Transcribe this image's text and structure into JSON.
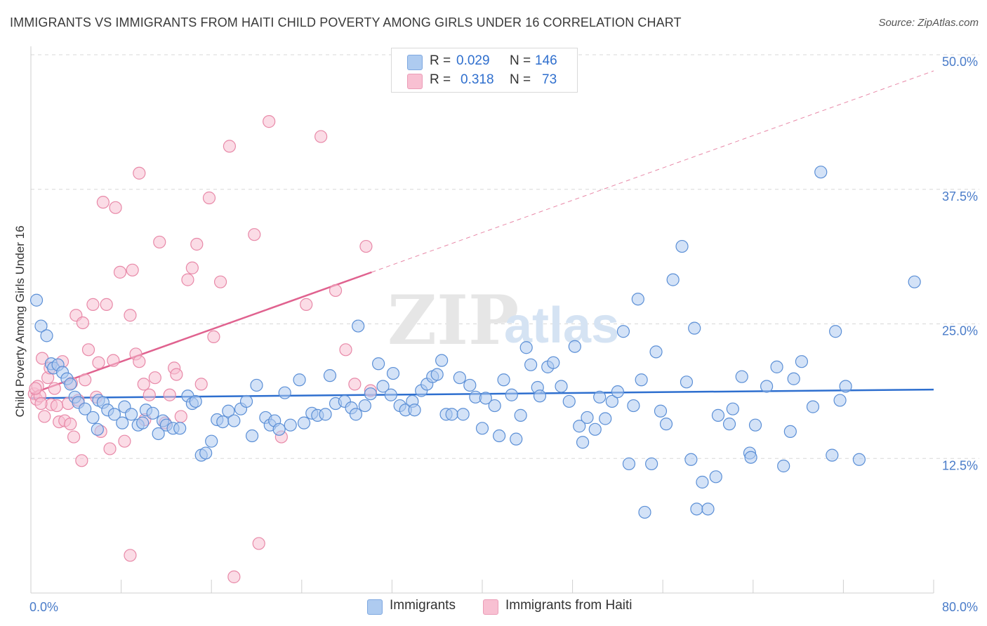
{
  "title": "IMMIGRANTS VS IMMIGRANTS FROM HAITI CHILD POVERTY AMONG GIRLS UNDER 16 CORRELATION CHART",
  "source": "Source: ZipAtlas.com",
  "watermark": {
    "zip": "ZIP",
    "atlas": "atlas"
  },
  "legend": {
    "series1": {
      "r_label": "R =",
      "r_value": "0.029",
      "n_label": "N =",
      "n_value": "146"
    },
    "series2": {
      "r_label": "R =",
      "r_value": "0.318",
      "n_label": "N =",
      "n_value": "73"
    }
  },
  "colors": {
    "blue_fill": "#aecbf0",
    "blue_stroke": "#5b8fd6",
    "blue_line": "#2e6fcf",
    "pink_fill": "#f8c0d2",
    "pink_stroke": "#e889a8",
    "pink_line": "#e0628f",
    "grid": "#d8d8d8",
    "tick_text": "#4a7cc9"
  },
  "chart_data": {
    "type": "scatter",
    "title": "IMMIGRANTS VS IMMIGRANTS FROM HAITI CHILD POVERTY AMONG GIRLS UNDER 16 CORRELATION CHART",
    "xlabel": "",
    "ylabel": "Child Poverty Among Girls Under 16",
    "xlim": [
      0,
      80
    ],
    "ylim": [
      0,
      50
    ],
    "x_tick_labels": [
      "0.0%",
      "80.0%"
    ],
    "y_ticks": [
      12.5,
      25.0,
      37.5,
      50.0
    ],
    "y_tick_labels": [
      "12.5%",
      "25.0%",
      "37.5%",
      "50.0%"
    ],
    "grid": true,
    "series": [
      {
        "name": "Immigrants",
        "color": "#5b8fd6",
        "trend": {
          "x": [
            0,
            80
          ],
          "y": [
            18.1,
            18.9
          ]
        },
        "points": [
          [
            0.5,
            27.2
          ],
          [
            0.9,
            24.8
          ],
          [
            1.4,
            23.9
          ],
          [
            1.8,
            21.3
          ],
          [
            2.0,
            20.9
          ],
          [
            2.4,
            21.2
          ],
          [
            2.8,
            20.5
          ],
          [
            3.2,
            19.9
          ],
          [
            3.5,
            19.4
          ],
          [
            3.9,
            18.2
          ],
          [
            4.2,
            17.7
          ],
          [
            4.8,
            17.1
          ],
          [
            5.5,
            16.3
          ],
          [
            5.9,
            15.2
          ],
          [
            6.0,
            17.9
          ],
          [
            6.4,
            17.7
          ],
          [
            6.8,
            17.0
          ],
          [
            7.4,
            16.6
          ],
          [
            8.1,
            15.8
          ],
          [
            8.3,
            17.3
          ],
          [
            8.9,
            16.6
          ],
          [
            9.5,
            15.6
          ],
          [
            9.9,
            15.8
          ],
          [
            10.2,
            17.0
          ],
          [
            10.8,
            16.7
          ],
          [
            11.3,
            14.8
          ],
          [
            11.7,
            16.0
          ],
          [
            12.0,
            15.6
          ],
          [
            12.6,
            15.3
          ],
          [
            13.2,
            15.3
          ],
          [
            13.9,
            18.3
          ],
          [
            14.3,
            17.6
          ],
          [
            14.6,
            17.8
          ],
          [
            15.1,
            12.8
          ],
          [
            15.5,
            13.0
          ],
          [
            16.0,
            14.1
          ],
          [
            16.5,
            16.1
          ],
          [
            17.0,
            15.9
          ],
          [
            17.5,
            16.9
          ],
          [
            18.0,
            16.0
          ],
          [
            18.6,
            17.1
          ],
          [
            19.1,
            17.8
          ],
          [
            19.6,
            14.6
          ],
          [
            20.0,
            19.3
          ],
          [
            20.8,
            16.3
          ],
          [
            21.2,
            15.6
          ],
          [
            21.6,
            16.0
          ],
          [
            22.0,
            15.2
          ],
          [
            22.5,
            18.6
          ],
          [
            23.0,
            15.6
          ],
          [
            23.8,
            19.8
          ],
          [
            24.2,
            15.8
          ],
          [
            24.9,
            16.7
          ],
          [
            25.4,
            16.5
          ],
          [
            26.1,
            16.6
          ],
          [
            26.5,
            20.2
          ],
          [
            27.0,
            17.6
          ],
          [
            27.8,
            17.8
          ],
          [
            28.4,
            17.2
          ],
          [
            28.8,
            16.6
          ],
          [
            29.0,
            24.8
          ],
          [
            29.6,
            17.4
          ],
          [
            30.1,
            18.5
          ],
          [
            30.8,
            21.3
          ],
          [
            31.2,
            19.2
          ],
          [
            31.9,
            18.4
          ],
          [
            32.1,
            20.4
          ],
          [
            32.7,
            17.4
          ],
          [
            33.2,
            17.0
          ],
          [
            33.8,
            17.8
          ],
          [
            34.0,
            17.0
          ],
          [
            34.6,
            18.8
          ],
          [
            35.1,
            19.4
          ],
          [
            35.6,
            20.1
          ],
          [
            36.0,
            20.3
          ],
          [
            36.4,
            21.6
          ],
          [
            36.8,
            16.6
          ],
          [
            37.3,
            16.6
          ],
          [
            38.0,
            20.0
          ],
          [
            38.3,
            16.6
          ],
          [
            38.9,
            19.3
          ],
          [
            39.4,
            18.2
          ],
          [
            40.0,
            15.3
          ],
          [
            40.3,
            18.1
          ],
          [
            41.1,
            17.4
          ],
          [
            41.5,
            14.6
          ],
          [
            41.9,
            19.8
          ],
          [
            42.6,
            18.4
          ],
          [
            43.0,
            14.3
          ],
          [
            43.4,
            16.5
          ],
          [
            43.9,
            22.8
          ],
          [
            44.3,
            21.2
          ],
          [
            44.9,
            19.1
          ],
          [
            45.1,
            18.3
          ],
          [
            45.8,
            21.0
          ],
          [
            46.3,
            21.4
          ],
          [
            47.0,
            19.2
          ],
          [
            47.7,
            17.8
          ],
          [
            48.2,
            22.9
          ],
          [
            48.6,
            15.5
          ],
          [
            48.9,
            14.0
          ],
          [
            49.3,
            16.3
          ],
          [
            50.0,
            15.2
          ],
          [
            50.4,
            18.2
          ],
          [
            50.9,
            16.2
          ],
          [
            51.5,
            17.8
          ],
          [
            52.0,
            18.7
          ],
          [
            52.5,
            24.3
          ],
          [
            53.0,
            12.0
          ],
          [
            53.4,
            17.4
          ],
          [
            53.8,
            27.3
          ],
          [
            54.1,
            19.8
          ],
          [
            54.4,
            7.5
          ],
          [
            55.0,
            12.0
          ],
          [
            55.4,
            22.4
          ],
          [
            55.8,
            16.9
          ],
          [
            56.3,
            15.7
          ],
          [
            56.9,
            29.1
          ],
          [
            57.7,
            32.2
          ],
          [
            58.1,
            19.6
          ],
          [
            58.5,
            12.4
          ],
          [
            58.8,
            24.6
          ],
          [
            59.0,
            7.8
          ],
          [
            59.5,
            10.3
          ],
          [
            60.0,
            7.8
          ],
          [
            60.7,
            10.8
          ],
          [
            60.9,
            16.5
          ],
          [
            61.9,
            15.7
          ],
          [
            62.2,
            17.1
          ],
          [
            63.0,
            20.1
          ],
          [
            63.7,
            13.0
          ],
          [
            63.8,
            12.6
          ],
          [
            64.2,
            15.6
          ],
          [
            65.2,
            19.2
          ],
          [
            66.1,
            21.0
          ],
          [
            66.7,
            11.8
          ],
          [
            67.3,
            15.0
          ],
          [
            67.6,
            19.9
          ],
          [
            68.3,
            21.5
          ],
          [
            69.3,
            17.3
          ],
          [
            70.0,
            39.1
          ],
          [
            71.0,
            12.8
          ],
          [
            71.3,
            24.3
          ],
          [
            71.7,
            17.9
          ],
          [
            72.2,
            19.2
          ],
          [
            73.4,
            12.4
          ],
          [
            78.3,
            28.9
          ]
        ]
      },
      {
        "name": "Immigrants from Haiti",
        "color": "#e889a8",
        "trend": {
          "x": [
            0,
            30.2
          ],
          "y": [
            18.5,
            29.8
          ]
        },
        "trend_extension": {
          "x": [
            30.2,
            80
          ],
          "y": [
            29.8,
            48.5
          ]
        },
        "points": [
          [
            0.3,
            18.5
          ],
          [
            0.5,
            18.0
          ],
          [
            0.6,
            19.2
          ],
          [
            0.8,
            18.3
          ],
          [
            1.0,
            21.8
          ],
          [
            1.2,
            16.4
          ],
          [
            1.5,
            20.0
          ],
          [
            1.8,
            17.5
          ],
          [
            2.1,
            19.0
          ],
          [
            2.5,
            15.9
          ],
          [
            2.8,
            21.5
          ],
          [
            3.0,
            16.0
          ],
          [
            3.3,
            17.6
          ],
          [
            3.5,
            15.7
          ],
          [
            3.8,
            14.5
          ],
          [
            4.0,
            25.8
          ],
          [
            4.2,
            17.9
          ],
          [
            4.5,
            12.3
          ],
          [
            4.8,
            19.8
          ],
          [
            5.1,
            22.6
          ],
          [
            5.5,
            26.8
          ],
          [
            5.8,
            18.2
          ],
          [
            6.0,
            21.4
          ],
          [
            6.4,
            36.3
          ],
          [
            6.7,
            26.8
          ],
          [
            7.0,
            13.4
          ],
          [
            7.3,
            21.6
          ],
          [
            7.5,
            35.8
          ],
          [
            7.9,
            29.8
          ],
          [
            8.3,
            14.1
          ],
          [
            8.8,
            25.8
          ],
          [
            9.0,
            30.0
          ],
          [
            9.3,
            22.2
          ],
          [
            9.6,
            39.0
          ],
          [
            10.0,
            19.4
          ],
          [
            10.5,
            18.4
          ],
          [
            11.0,
            20.0
          ],
          [
            11.4,
            32.6
          ],
          [
            11.9,
            15.8
          ],
          [
            12.3,
            18.4
          ],
          [
            12.7,
            20.9
          ],
          [
            13.3,
            16.4
          ],
          [
            13.9,
            29.1
          ],
          [
            14.3,
            30.2
          ],
          [
            14.7,
            32.4
          ],
          [
            15.1,
            19.4
          ],
          [
            15.8,
            36.7
          ],
          [
            16.2,
            23.8
          ],
          [
            16.8,
            28.9
          ],
          [
            17.6,
            41.5
          ],
          [
            18.0,
            1.5
          ],
          [
            19.8,
            33.3
          ],
          [
            20.2,
            4.6
          ],
          [
            21.1,
            43.8
          ],
          [
            22.2,
            14.5
          ],
          [
            24.4,
            26.8
          ],
          [
            25.7,
            42.4
          ],
          [
            27.0,
            28.1
          ],
          [
            27.9,
            22.6
          ],
          [
            28.7,
            19.4
          ],
          [
            29.7,
            32.2
          ],
          [
            30.1,
            18.8
          ],
          [
            4.6,
            25.1
          ],
          [
            6.2,
            15.0
          ],
          [
            8.8,
            3.5
          ],
          [
            10.1,
            16.1
          ],
          [
            2.3,
            17.4
          ],
          [
            1.7,
            20.9
          ],
          [
            0.9,
            17.6
          ],
          [
            3.6,
            19.5
          ],
          [
            9.6,
            21.5
          ],
          [
            12.9,
            20.3
          ],
          [
            0.4,
            19.0
          ]
        ]
      }
    ]
  }
}
